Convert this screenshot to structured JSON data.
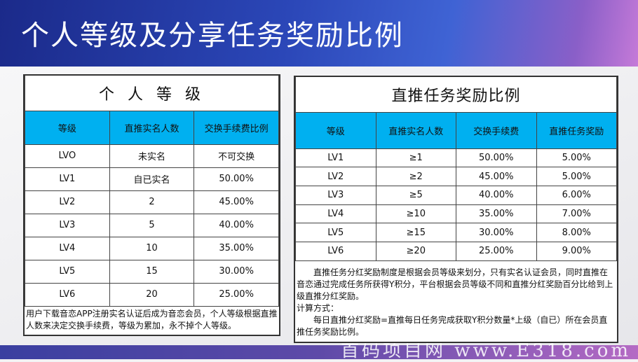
{
  "title": "个人等级及分享任务奖励比例",
  "watermark": "首码项目网 www.E318.com",
  "left": {
    "title": "个 人 等 级",
    "headers": [
      "等级",
      "直推实名人数",
      "交换手续费比例"
    ],
    "rows": [
      [
        "LVO",
        "未实名",
        "不可交换"
      ],
      [
        "LV1",
        "自已实名",
        "50.00%"
      ],
      [
        "LV2",
        "2",
        "45.00%"
      ],
      [
        "LV3",
        "5",
        "40.00%"
      ],
      [
        "LV4",
        "10",
        "35.00%"
      ],
      [
        "LV5",
        "15",
        "30.00%"
      ],
      [
        "LV6",
        "20",
        "25.00%"
      ]
    ],
    "note": "用户下载音恋APP注册实名认证后成为音恋会员，个人等级根据直推人数来决定交换手续费，等级为累加，永不掉个人等级。"
  },
  "right": {
    "title": "直推任务奖励比例",
    "headers": [
      "等级",
      "直推实名人数",
      "交换手续费",
      "直推任务奖励"
    ],
    "rows": [
      [
        "LV1",
        "≥1",
        "50.00%",
        "5.00%"
      ],
      [
        "LV2",
        "≥2",
        "45.00%",
        "5.00%"
      ],
      [
        "LV3",
        "≥5",
        "40.00%",
        "6.00%"
      ],
      [
        "LV4",
        "≥10",
        "35.00%",
        "7.00%"
      ],
      [
        "LV5",
        "≥15",
        "30.00%",
        "8.00%"
      ],
      [
        "LV6",
        "≥20",
        "25.00%",
        "9.00%"
      ]
    ],
    "note1": "　　直推任务分红奖励制度是根据会员等级来划分，只有实名认证会员，同时直推在音恋通过完成任务所获得Y积分，平台根据会员等级不同和直推分红奖励百分比给到上级直推分红奖励。",
    "note2": "计算方式：",
    "note3": "　　每日直推分红奖励=直推每日任务完成获取Y积分数量*上级（自已）所在会员直推任务奖励比例。"
  }
}
